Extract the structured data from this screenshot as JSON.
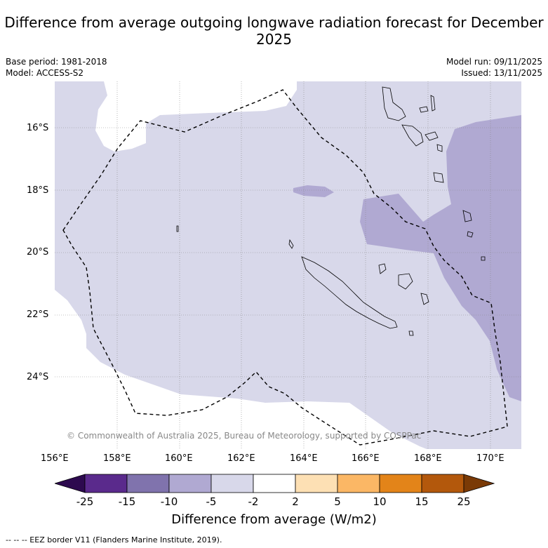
{
  "title": "Difference from average outgoing longwave radiation forecast for December 2025",
  "base_period": "Base period: 1981-2018",
  "model": "Model: ACCESS-S2",
  "model_run": "Model run: 09/11/2025",
  "issued": "Issued: 13/11/2025",
  "copyright": "© Commonwealth of Australia 2025, Bureau of Meteorology, supported by COSPPac",
  "lat_labels": [
    "16°S",
    "18°S",
    "20°S",
    "22°S",
    "24°S"
  ],
  "lon_labels": [
    "156°E",
    "158°E",
    "160°E",
    "162°E",
    "164°E",
    "166°E",
    "168°E",
    "170°E"
  ],
  "colorbar": {
    "ticks": [
      "-25",
      "-15",
      "-10",
      "-5",
      "-2",
      "2",
      "5",
      "10",
      "15",
      "25"
    ],
    "colors": [
      "#2d0a4f",
      "#5a2a8c",
      "#8073ad",
      "#b0a9d2",
      "#d8d8ea",
      "#ffffff",
      "#fde0b4",
      "#fbb765",
      "#e38419",
      "#b3580c",
      "#7a3a06"
    ],
    "label": "Difference from average (W/m2)"
  },
  "legend_footer": "--  --  -- EEZ border V11 (Flanders Marine Institute, 2019)."
}
